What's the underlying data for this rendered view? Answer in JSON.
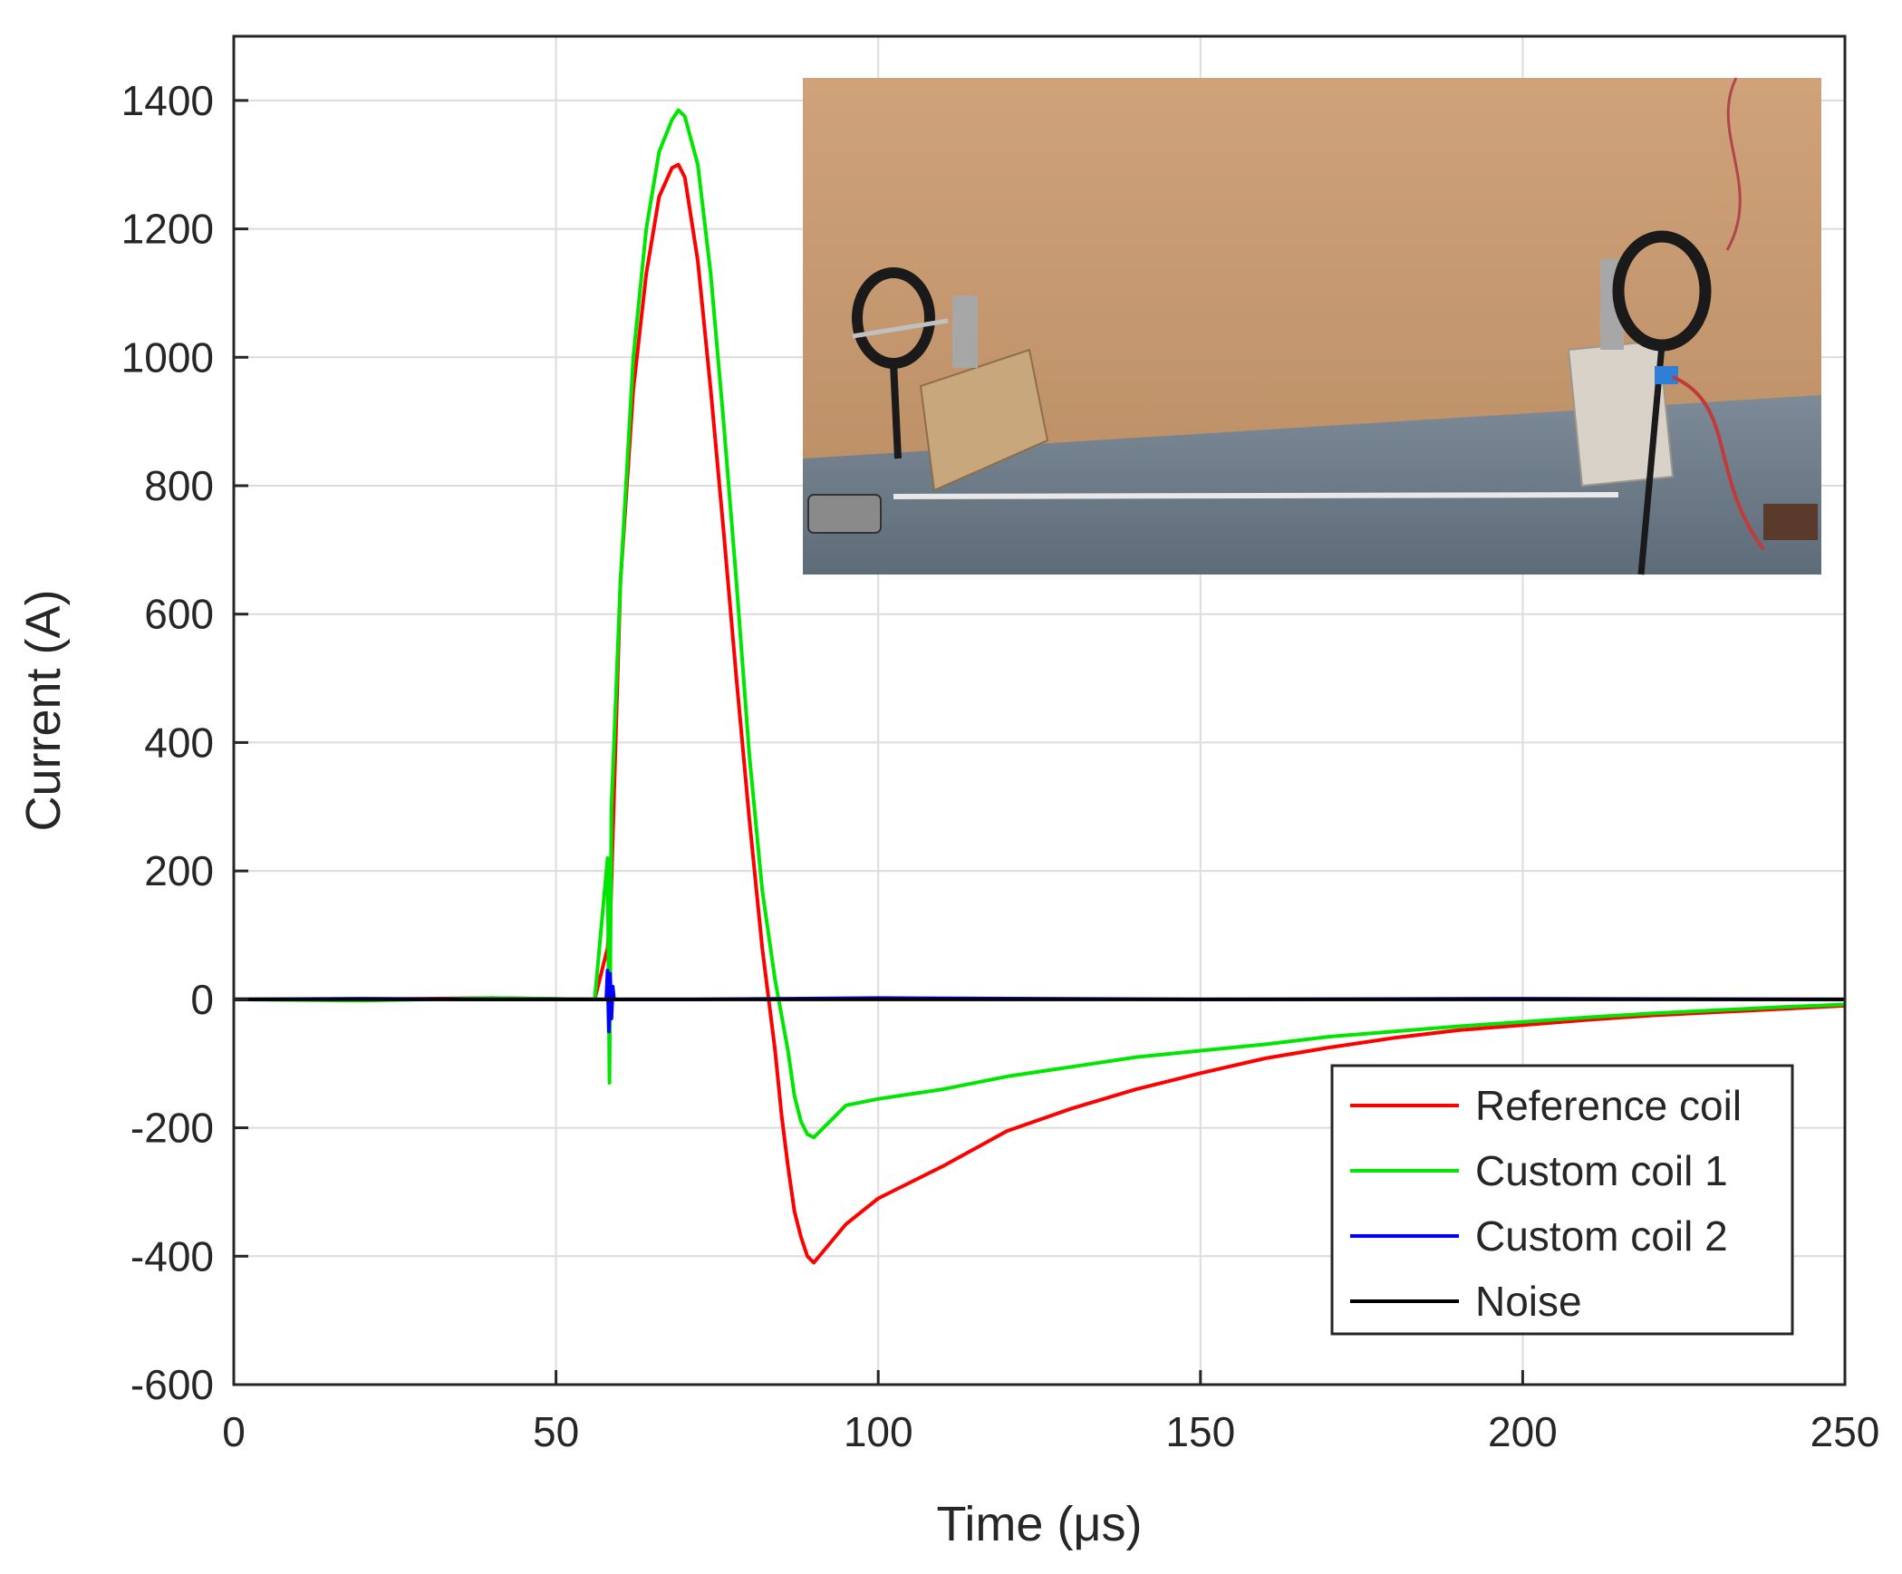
{
  "chart_data": {
    "type": "line",
    "xlabel": "Time (μs)",
    "ylabel": "Current (A)",
    "xlim": [
      0,
      250
    ],
    "ylim": [
      -600,
      1500
    ],
    "xticks": [
      0,
      50,
      100,
      150,
      200,
      250
    ],
    "yticks": [
      -600,
      -400,
      -200,
      0,
      200,
      400,
      600,
      800,
      1000,
      1200,
      1400
    ],
    "grid": true,
    "legend": {
      "position": "bottom-right",
      "entries": [
        "Reference coil",
        "Custom coil 1",
        "Custom coil 2",
        "Noise"
      ]
    },
    "inset": {
      "description_visible": false,
      "position": "top-right",
      "colors": {
        "wall": "#c99a6e",
        "table": "#6f7d8c",
        "coil": "#1a1a1a",
        "block": "#c9a77d",
        "block2": "#d9d2c9"
      }
    },
    "series": [
      {
        "name": "Reference coil",
        "color": "#ff0000",
        "x": [
          0,
          20,
          40,
          56,
          58,
          58.5,
          60,
          62,
          64,
          66,
          68,
          69,
          70,
          72,
          74,
          76,
          78,
          80,
          82,
          84,
          85,
          86,
          87,
          88,
          89,
          90,
          95,
          100,
          110,
          120,
          130,
          140,
          150,
          160,
          170,
          180,
          190,
          200,
          210,
          220,
          230,
          240,
          250
        ],
        "y": [
          0,
          0,
          2,
          0,
          80,
          150,
          650,
          950,
          1130,
          1250,
          1295,
          1300,
          1280,
          1150,
          950,
          730,
          500,
          280,
          80,
          -80,
          -180,
          -260,
          -330,
          -370,
          -400,
          -410,
          -350,
          -310,
          -260,
          -205,
          -170,
          -140,
          -115,
          -92,
          -75,
          -60,
          -48,
          -40,
          -32,
          -25,
          -20,
          -15,
          -10
        ]
      },
      {
        "name": "Custom coil 1",
        "color": "#00e600",
        "x": [
          0,
          20,
          40,
          56,
          58,
          58.3,
          58.6,
          60,
          62,
          64,
          66,
          68,
          69,
          70,
          72,
          74,
          76,
          78,
          80,
          82,
          84,
          86,
          87,
          88,
          89,
          90,
          95,
          100,
          110,
          120,
          130,
          140,
          150,
          160,
          170,
          180,
          190,
          200,
          210,
          220,
          230,
          240,
          250
        ],
        "y": [
          0,
          -2,
          2,
          0,
          220,
          -130,
          300,
          650,
          1000,
          1200,
          1320,
          1370,
          1385,
          1375,
          1300,
          1130,
          900,
          650,
          380,
          170,
          30,
          -80,
          -150,
          -190,
          -210,
          -215,
          -165,
          -155,
          -140,
          -120,
          -105,
          -90,
          -80,
          -70,
          -58,
          -50,
          -42,
          -35,
          -28,
          -22,
          -17,
          -12,
          -8
        ]
      },
      {
        "name": "Custom coil 2",
        "color": "#0000ff",
        "x": [
          0,
          20,
          40,
          57.8,
          58,
          58.2,
          58.4,
          58.6,
          58.8,
          59,
          70,
          100,
          150,
          200,
          250
        ],
        "y": [
          0,
          1,
          0,
          0,
          45,
          -50,
          40,
          -30,
          20,
          0,
          0,
          2,
          0,
          1,
          0
        ]
      },
      {
        "name": "Noise",
        "color": "#000000",
        "x": [
          0,
          50,
          100,
          150,
          200,
          250
        ],
        "y": [
          0,
          0,
          0,
          0,
          0,
          0
        ]
      }
    ]
  }
}
